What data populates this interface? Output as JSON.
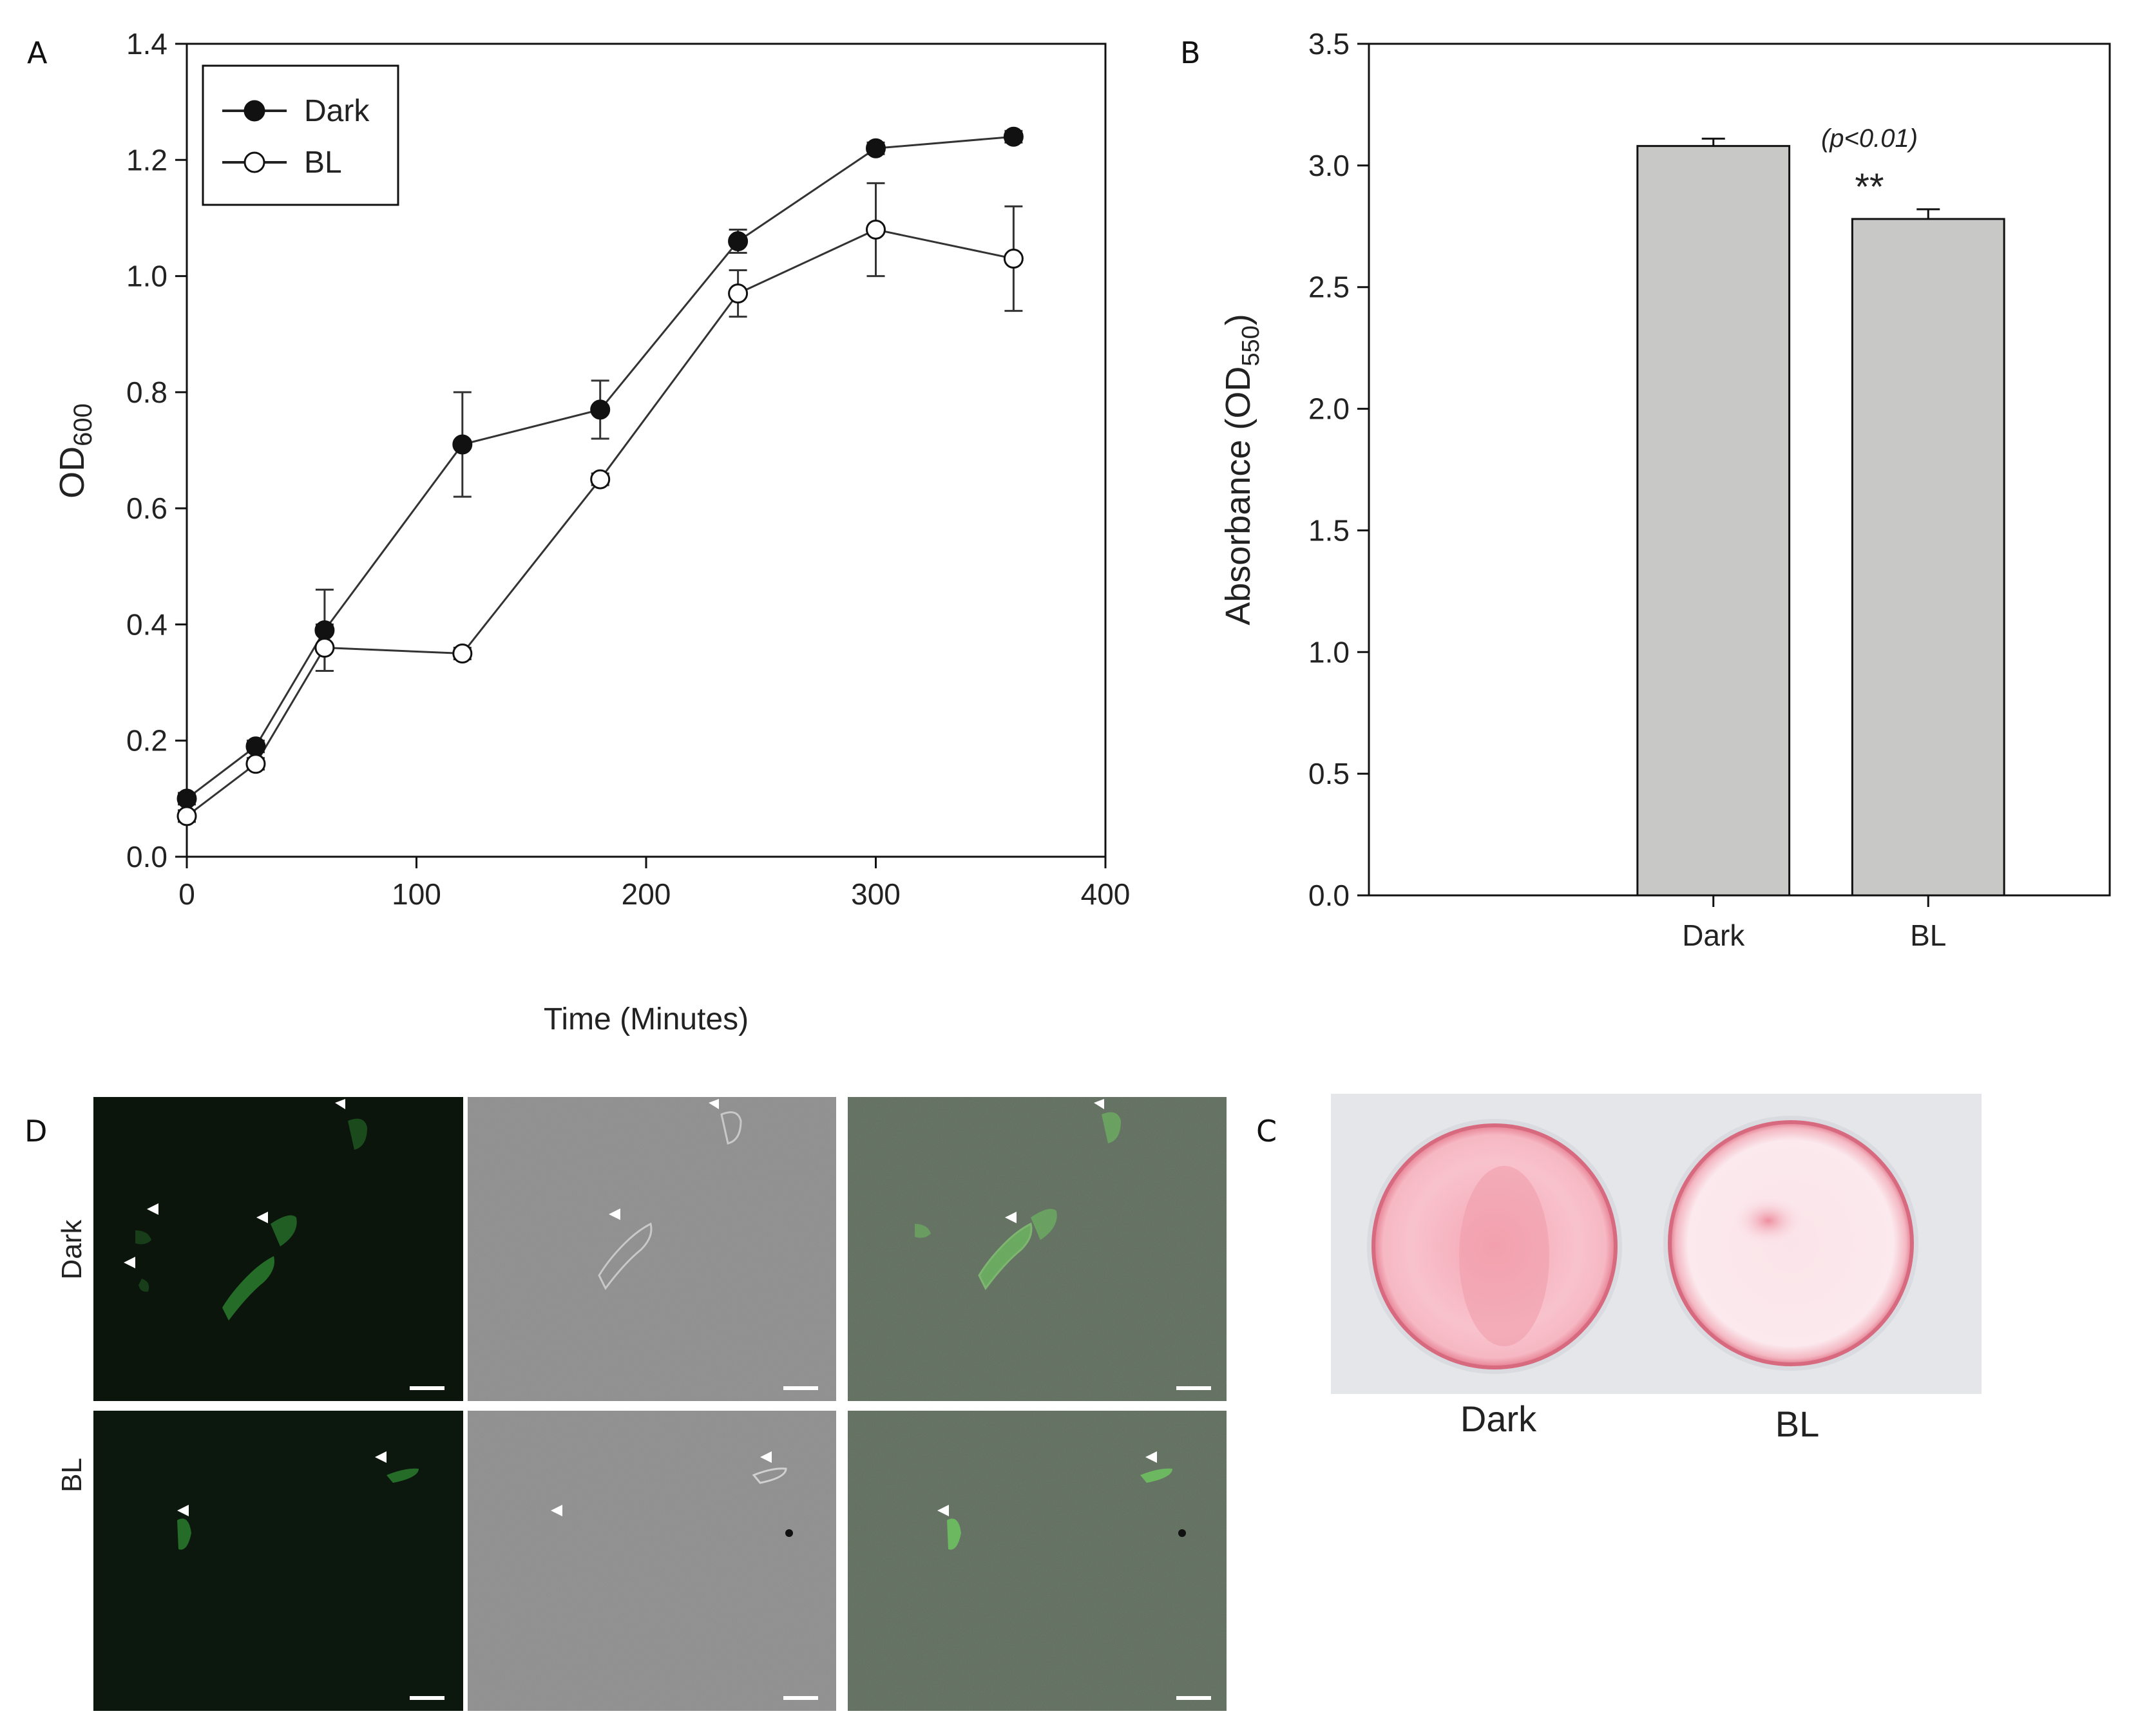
{
  "panels": {
    "A_label": "A",
    "B_label": "B",
    "C_label": "C",
    "D_label": "D"
  },
  "chart_data": [
    {
      "type": "line",
      "panel": "A",
      "xlabel": "Time (Minutes)",
      "ylabel_main": "OD",
      "ylabel_sub": "600",
      "xlim": [
        0,
        400
      ],
      "ylim": [
        0.0,
        1.4
      ],
      "xticks": [
        0,
        100,
        200,
        300,
        400
      ],
      "yticks": [
        0.0,
        0.2,
        0.4,
        0.6,
        0.8,
        1.0,
        1.2,
        1.4
      ],
      "xtick_labels": [
        "0",
        "100",
        "200",
        "300",
        "400"
      ],
      "ytick_labels": [
        "0.0",
        "0.2",
        "0.4",
        "0.6",
        "0.8",
        "1.0",
        "1.2",
        "1.4"
      ],
      "legend_position": "top-left",
      "x": [
        0,
        30,
        60,
        120,
        180,
        240,
        300,
        360
      ],
      "series": [
        {
          "name": "Dark",
          "marker": "filled-circle",
          "values": [
            0.1,
            0.19,
            0.39,
            0.71,
            0.77,
            1.06,
            1.22,
            1.24
          ],
          "errors": [
            0.01,
            0.01,
            0.07,
            0.09,
            0.05,
            0.02,
            0.01,
            0.01
          ]
        },
        {
          "name": "BL",
          "marker": "open-circle",
          "values": [
            0.07,
            0.16,
            0.36,
            0.35,
            0.65,
            0.97,
            1.08,
            1.03
          ],
          "errors": [
            0.01,
            0.01,
            0.04,
            0.01,
            0.01,
            0.04,
            0.08,
            0.09
          ]
        }
      ]
    },
    {
      "type": "bar",
      "panel": "B",
      "ylabel_main": "Absorbance (OD",
      "ylabel_sub": "550",
      "ylabel_end": ")",
      "ylim": [
        0.0,
        3.5
      ],
      "yticks": [
        0.0,
        0.5,
        1.0,
        1.5,
        2.0,
        2.5,
        3.0,
        3.5
      ],
      "ytick_labels": [
        "0.0",
        "0.5",
        "1.0",
        "1.5",
        "2.0",
        "2.5",
        "3.0",
        "3.5"
      ],
      "categories": [
        "Dark",
        "BL"
      ],
      "values": [
        3.08,
        2.78
      ],
      "errors": [
        0.03,
        0.04
      ],
      "bar_color": "#c8c8c6",
      "annotation_p": "(p<0.01)",
      "annotation_sig": "**"
    }
  ],
  "panel_c": {
    "labels": [
      "Dark",
      "BL"
    ],
    "dish_color_dark": "#f2a4b3",
    "dish_color_bl": "#f6c7d0"
  },
  "panel_d": {
    "row_labels": [
      "Dark",
      "BL"
    ],
    "fluor_color": "#0c180d",
    "dic_color": "#8a8a8a",
    "merge_color": "#5b6a5a",
    "cell_color": "#3fbf3f"
  }
}
